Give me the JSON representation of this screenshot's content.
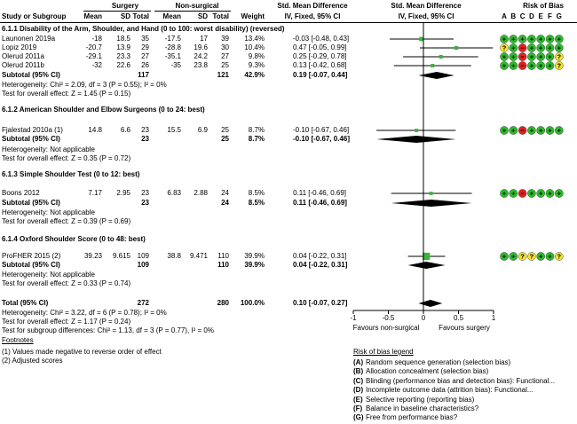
{
  "headers": {
    "study": "Study or Subgroup",
    "surgery": "Surgery",
    "nonsurgical": "Non-surgical",
    "mean": "Mean",
    "sd": "SD",
    "total": "Total",
    "weight": "Weight",
    "smd_top": "Std. Mean Difference",
    "smd_sub": "IV, Fixed, 95% CI",
    "smd_plot_top": "Std. Mean Difference",
    "smd_plot_sub": "IV, Fixed, 95% CI",
    "rob": "Risk of Bias",
    "rob_cols": [
      "A",
      "B",
      "C",
      "D",
      "E",
      "F",
      "G"
    ]
  },
  "groups": [
    {
      "title": "6.1.1 Disability of the Arm, Shoulder, and Hand (0 to 100: worst disability) (reversed)",
      "studies": [
        {
          "name": "Launonen 2019a",
          "m1": "-18",
          "sd1": "18.5",
          "n1": "35",
          "m2": "-17.5",
          "sd2": "17",
          "n2": "39",
          "w": "13.4%",
          "ci": "-0.03 [-0.48, 0.43]",
          "rob": [
            "g",
            "g",
            "g",
            "g",
            "g",
            "g",
            "g"
          ]
        },
        {
          "name": "Lopiz 2019",
          "m1": "-20.7",
          "sd1": "13.9",
          "n1": "29",
          "m2": "-28.8",
          "sd2": "19.6",
          "n2": "30",
          "w": "10.4%",
          "ci": "0.47 [-0.05, 0.99]",
          "rob": [
            "y",
            "g",
            "r",
            "g",
            "g",
            "g",
            "g"
          ]
        },
        {
          "name": "Olerud 2011a",
          "m1": "-29.1",
          "sd1": "23.3",
          "n1": "27",
          "m2": "-35.1",
          "sd2": "24.2",
          "n2": "27",
          "w": "9.8%",
          "ci": "0.25 [-0.29, 0.78]",
          "rob": [
            "g",
            "g",
            "r",
            "g",
            "g",
            "g",
            "y"
          ]
        },
        {
          "name": "Olerud 2011b",
          "m1": "-32",
          "sd1": "22.6",
          "n1": "26",
          "m2": "-35",
          "sd2": "23.8",
          "n2": "25",
          "w": "9.3%",
          "ci": "0.13 [-0.42, 0.68]",
          "rob": [
            "g",
            "g",
            "r",
            "g",
            "g",
            "g",
            "y"
          ]
        }
      ],
      "subtotal": {
        "label": "Subtotal (95% CI)",
        "n1": "117",
        "n2": "121",
        "w": "42.9%",
        "ci": "0.19 [-0.07, 0.44]"
      },
      "het": "Heterogeneity: Chi² = 2.09, df = 3 (P = 0.55); I² = 0%",
      "overall": "Test for overall effect: Z = 1.45 (P = 0.15)"
    },
    {
      "title": "6.1.2 American Shoulder and Elbow Surgeons (0 to 24: best)",
      "studies": [
        {
          "name": "Fjalestad 2010a (1)",
          "m1": "14.8",
          "sd1": "6.6",
          "n1": "23",
          "m2": "15.5",
          "sd2": "6.9",
          "n2": "25",
          "w": "8.7%",
          "ci": "-0.10 [-0.67, 0.46]",
          "rob": [
            "g",
            "g",
            "r",
            "g",
            "g",
            "g",
            "g"
          ]
        }
      ],
      "subtotal": {
        "label": "Subtotal (95% CI)",
        "n1": "23",
        "n2": "25",
        "w": "8.7%",
        "ci": "-0.10 [-0.67, 0.46]"
      },
      "het": "Heterogeneity: Not applicable",
      "overall": "Test for overall effect: Z = 0.35 (P = 0.72)"
    },
    {
      "title": "6.1.3 Simple Shoulder Test (0 to 12: best)",
      "studies": [
        {
          "name": "Boons 2012",
          "m1": "7.17",
          "sd1": "2.95",
          "n1": "23",
          "m2": "6.83",
          "sd2": "2.88",
          "n2": "24",
          "w": "8.5%",
          "ci": "0.11 [-0.46, 0.69]",
          "rob": [
            "g",
            "g",
            "r",
            "g",
            "g",
            "g",
            "g"
          ]
        }
      ],
      "subtotal": {
        "label": "Subtotal (95% CI)",
        "n1": "23",
        "n2": "24",
        "w": "8.5%",
        "ci": "0.11 [-0.46, 0.69]"
      },
      "het": "Heterogeneity: Not applicable",
      "overall": "Test for overall effect: Z = 0.39 (P = 0.69)"
    },
    {
      "title": "6.1.4 Oxford Shoulder Score (0 to 48: best)",
      "studies": [
        {
          "name": "ProFHER 2015 (2)",
          "m1": "39.23",
          "sd1": "9.615",
          "n1": "109",
          "m2": "38.8",
          "sd2": "9.471",
          "n2": "110",
          "w": "39.9%",
          "ci": "0.04 [-0.22, 0.31]",
          "rob": [
            "g",
            "g",
            "y",
            "y",
            "g",
            "g",
            "y"
          ]
        }
      ],
      "subtotal": {
        "label": "Subtotal (95% CI)",
        "n1": "109",
        "n2": "110",
        "w": "39.9%",
        "ci": "0.04 [-0.22, 0.31]"
      },
      "het": "Heterogeneity: Not applicable",
      "overall": "Test for overall effect: Z = 0.33 (P = 0.74)"
    }
  ],
  "total": {
    "label": "Total (95% CI)",
    "n1": "272",
    "n2": "280",
    "w": "100.0%",
    "ci": "0.10 [-0.07, 0.27]"
  },
  "total_het": "Heterogeneity: Chi² = 3.22, df = 6 (P = 0.78); I² = 0%",
  "total_overall": "Test for overall effect: Z = 1.17 (P = 0.24)",
  "subgroup_diff": "Test for subgroup differences: Chi² = 1.13, df = 3 (P = 0.77), I² = 0%",
  "footnotes": {
    "title": "Footnotes",
    "items": [
      "(1) Values made negative to reverse order of effect",
      "(2) Adjusted scores"
    ]
  },
  "axis": {
    "ticks": [
      "-1",
      "-0.5",
      "0",
      "0.5",
      "1"
    ],
    "left_label": "Favours non-surgical",
    "right_label": "Favours surgery"
  },
  "rob_legend": {
    "title": "Risk of bias legend",
    "items": [
      {
        "key": "(A)",
        "text": " Random sequence generation (selection bias)"
      },
      {
        "key": "(B)",
        "text": " Allocation concealment (selection bias)"
      },
      {
        "key": "(C)",
        "text": " Blinding (performance bias and detection bias): Functional..."
      },
      {
        "key": "(D)",
        "text": " Incomplete outcome data (attrition bias): Functional..."
      },
      {
        "key": "(E)",
        "text": " Selective reporting (reporting bias)"
      },
      {
        "key": "(F)",
        "text": " Balance in baseline characteristics?"
      },
      {
        "key": "(G)",
        "text": " Free from performance bias?"
      }
    ]
  },
  "colors": {
    "g": "#2db82d",
    "y": "#f0e130",
    "r": "#e02020",
    "square": "#3cb33c"
  },
  "chart_data": {
    "type": "forest",
    "xlim": [
      -1,
      1
    ],
    "xticks": [
      -1,
      -0.5,
      0,
      0.5,
      1
    ],
    "xlabel_left": "Favours non-surgical",
    "xlabel_right": "Favours surgery",
    "studies": [
      {
        "name": "Launonen 2019a",
        "est": -0.03,
        "lo": -0.48,
        "hi": 0.43,
        "weight": 13.4
      },
      {
        "name": "Lopiz 2019",
        "est": 0.47,
        "lo": -0.05,
        "hi": 0.99,
        "weight": 10.4
      },
      {
        "name": "Olerud 2011a",
        "est": 0.25,
        "lo": -0.29,
        "hi": 0.78,
        "weight": 9.8
      },
      {
        "name": "Olerud 2011b",
        "est": 0.13,
        "lo": -0.42,
        "hi": 0.68,
        "weight": 9.3
      },
      {
        "name": "Fjalestad 2010a (1)",
        "est": -0.1,
        "lo": -0.67,
        "hi": 0.46,
        "weight": 8.7
      },
      {
        "name": "Boons 2012",
        "est": 0.11,
        "lo": -0.46,
        "hi": 0.69,
        "weight": 8.5
      },
      {
        "name": "ProFHER 2015 (2)",
        "est": 0.04,
        "lo": -0.22,
        "hi": 0.31,
        "weight": 39.9
      }
    ],
    "subtotals": [
      {
        "est": 0.19,
        "lo": -0.07,
        "hi": 0.44
      },
      {
        "est": -0.1,
        "lo": -0.67,
        "hi": 0.46
      },
      {
        "est": 0.11,
        "lo": -0.46,
        "hi": 0.69
      },
      {
        "est": 0.04,
        "lo": -0.22,
        "hi": 0.31
      }
    ],
    "total": {
      "est": 0.1,
      "lo": -0.07,
      "hi": 0.27
    }
  }
}
